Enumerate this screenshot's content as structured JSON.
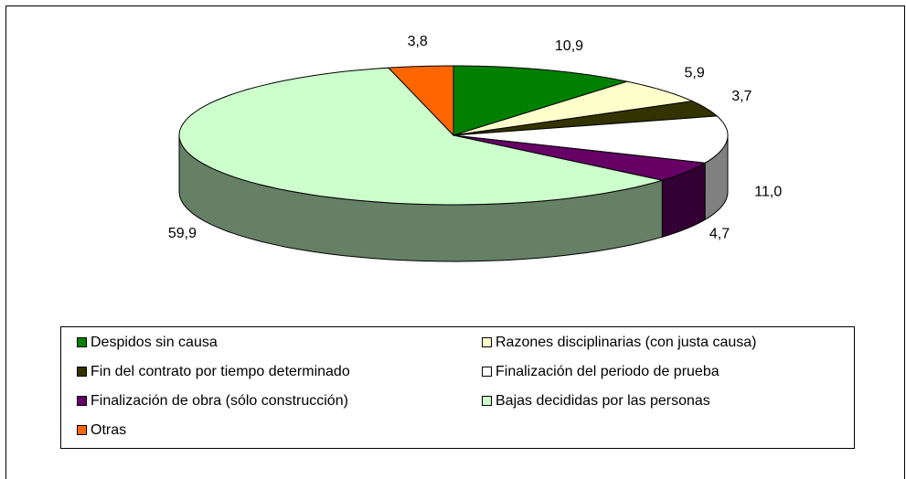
{
  "chart_data": {
    "type": "pie3d",
    "categories": [
      "Despidos sin causa",
      "Razones disciplinarias (con justa causa)",
      "Fin del contrato por tiempo determinado",
      "Finalización del periodo de prueba",
      "Finalización de obra (sólo construcción)",
      "Bajas decididas por las personas",
      "Otras"
    ],
    "values": [
      10.9,
      5.9,
      3.7,
      11.0,
      4.7,
      59.9,
      3.8
    ],
    "value_labels": [
      "10,9",
      "5,9",
      "3,7",
      "11,0",
      "4,7",
      "59,9",
      "3,8"
    ],
    "colors": [
      "#008000",
      "#ffffcc",
      "#333300",
      "#ffffff",
      "#660066",
      "#ccffcc",
      "#ff6600"
    ],
    "legend": "bottom"
  }
}
